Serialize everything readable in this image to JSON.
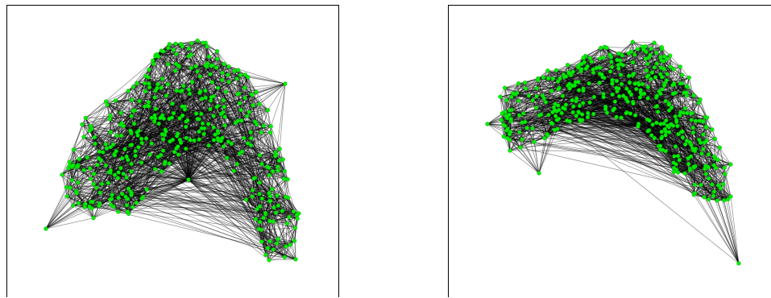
{
  "figure": {
    "panels": [
      {
        "name": "graph-layout-left",
        "node_count": 420
      },
      {
        "name": "graph-layout-right",
        "node_count": 420
      }
    ]
  },
  "colors": {
    "node": "#00ee00",
    "node_stroke": "#00aa00",
    "edge": "#000000",
    "background": "#ffffff",
    "frame": "#000000"
  }
}
